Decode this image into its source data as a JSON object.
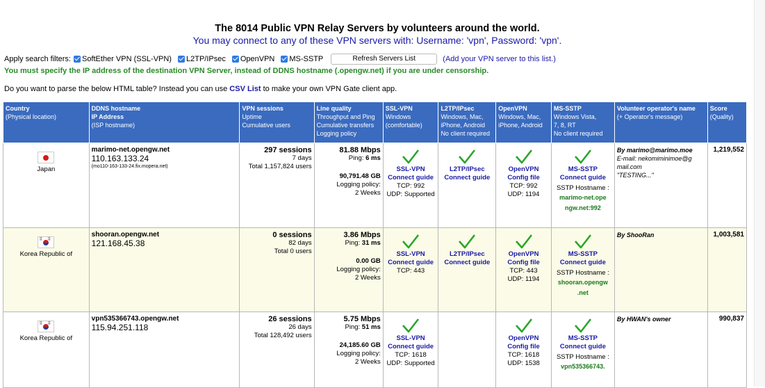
{
  "title": "The 8014 Public VPN Relay Servers by volunteers around the world.",
  "subtitle": "You may connect to any of these VPN servers with: Username: 'vpn', Password: 'vpn'.",
  "filters": {
    "label": "Apply search filters:",
    "items": [
      "SoftEther VPN (SSL-VPN)",
      "L2TP/IPsec",
      "OpenVPN",
      "MS-SSTP"
    ],
    "refresh_label": "Refresh Servers List",
    "add_link": "(Add your VPN server to this list.)"
  },
  "warning": "You must specify the IP address of the destination VPN Server, instead of DDNS hostname (.opengw.net) if you are under censorship.",
  "parse": {
    "before": "Do you want to parse the below HTML table? Instead you can use",
    "csv": "CSV List",
    "after": "to make your own VPN Gate client app."
  },
  "headers": {
    "country": [
      "Country",
      "(Physical location)"
    ],
    "ddns": [
      "DDNS hostname",
      "IP Address",
      "(ISP hostname)"
    ],
    "sessions": [
      "VPN sessions",
      "Uptime",
      "Cumulative users"
    ],
    "quality": [
      "Line quality",
      "Throughput and Ping",
      "Cumulative transfers",
      "Logging policy"
    ],
    "ssl": [
      "SSL-VPN",
      "Windows",
      "(comfortable)"
    ],
    "l2tp": [
      "L2TP/IPsec",
      "Windows, Mac,",
      "iPhone, Android",
      "No client required"
    ],
    "openvpn": [
      "OpenVPN",
      "Windows, Mac,",
      "iPhone, Android"
    ],
    "sstp": [
      "MS-SSTP",
      "Windows Vista,",
      "7, 8, RT",
      "No client required"
    ],
    "operator": [
      "Volunteer operator's name",
      "(+ Operator's message)"
    ],
    "score": [
      "Score",
      "(Quality)"
    ]
  },
  "rows": [
    {
      "country": "Japan",
      "flag": "jp",
      "host": "marimo-net.opengw.net",
      "ip": "110.163.133.24",
      "isp": "(mo110-163-133-24.fix.mopera.net)",
      "sessions": "297 sessions",
      "uptime": "7 days",
      "users": "Total 1,157,824 users",
      "mbps": "81.88 Mbps",
      "ping_label": "Ping:",
      "ping": "6 ms",
      "transfer": "90,791.48 GB",
      "log_label": "Logging policy:",
      "log": "2 Weeks",
      "ssl": {
        "l1": "SSL-VPN",
        "l2": "Connect guide",
        "tcp": "TCP: 992",
        "udp": "UDP: Supported"
      },
      "l2tp": {
        "l1": "L2TP/IPsec",
        "l2": "Connect guide"
      },
      "ovpn": {
        "l1": "OpenVPN",
        "l2": "Config file",
        "tcp": "TCP: 992",
        "udp": "UDP: 1194"
      },
      "sstp": {
        "l1": "MS-SSTP",
        "l2": "Connect guide",
        "hn": "SSTP Hostname :",
        "h1": "marimo-net.ope",
        "h2": "ngw.net:992"
      },
      "operator": [
        "By marimo@marimo.moe",
        "E-mail: nekomiminimoe@g",
        "mail.com",
        "\"TESTING...\""
      ],
      "score": "1,219,552"
    },
    {
      "country": "Korea Republic of",
      "flag": "kr",
      "host": "shooran.opengw.net",
      "ip": "121.168.45.38",
      "isp": "",
      "sessions": "0 sessions",
      "uptime": "82 days",
      "users": "Total 0 users",
      "mbps": "3.86 Mbps",
      "ping_label": "Ping:",
      "ping": "31 ms",
      "transfer": "0.00 GB",
      "log_label": "Logging policy:",
      "log": "2 Weeks",
      "ssl": {
        "l1": "SSL-VPN",
        "l2": "Connect guide",
        "tcp": "TCP: 443",
        "udp": ""
      },
      "l2tp": {
        "l1": "L2TP/IPsec",
        "l2": "Connect guide"
      },
      "ovpn": {
        "l1": "OpenVPN",
        "l2": "Config file",
        "tcp": "TCP: 443",
        "udp": "UDP: 1194"
      },
      "sstp": {
        "l1": "MS-SSTP",
        "l2": "Connect guide",
        "hn": "SSTP Hostname :",
        "h1": "shooran.opengw",
        "h2": ".net"
      },
      "operator": [
        "By ShooRan",
        "",
        "",
        ""
      ],
      "score": "1,003,581"
    },
    {
      "country": "Korea Republic of",
      "flag": "kr",
      "host": "vpn535366743.opengw.net",
      "ip": "115.94.251.118",
      "isp": "",
      "sessions": "26 sessions",
      "uptime": "26 days",
      "users": "Total 128,492 users",
      "mbps": "5.75 Mbps",
      "ping_label": "Ping:",
      "ping": "51 ms",
      "transfer": "24,185.60 GB",
      "log_label": "Logging policy:",
      "log": "2 Weeks",
      "ssl": {
        "l1": "SSL-VPN",
        "l2": "Connect guide",
        "tcp": "TCP: 1618",
        "udp": "UDP: Supported"
      },
      "l2tp": null,
      "ovpn": {
        "l1": "OpenVPN",
        "l2": "Config file",
        "tcp": "TCP: 1618",
        "udp": "UDP: 1538"
      },
      "sstp": {
        "l1": "MS-SSTP",
        "l2": "Connect guide",
        "hn": "SSTP Hostname :",
        "h1": "vpn535366743.",
        "h2": ""
      },
      "operator": [
        "By HWAN's owner",
        "",
        "",
        ""
      ],
      "score": "990,837"
    }
  ]
}
